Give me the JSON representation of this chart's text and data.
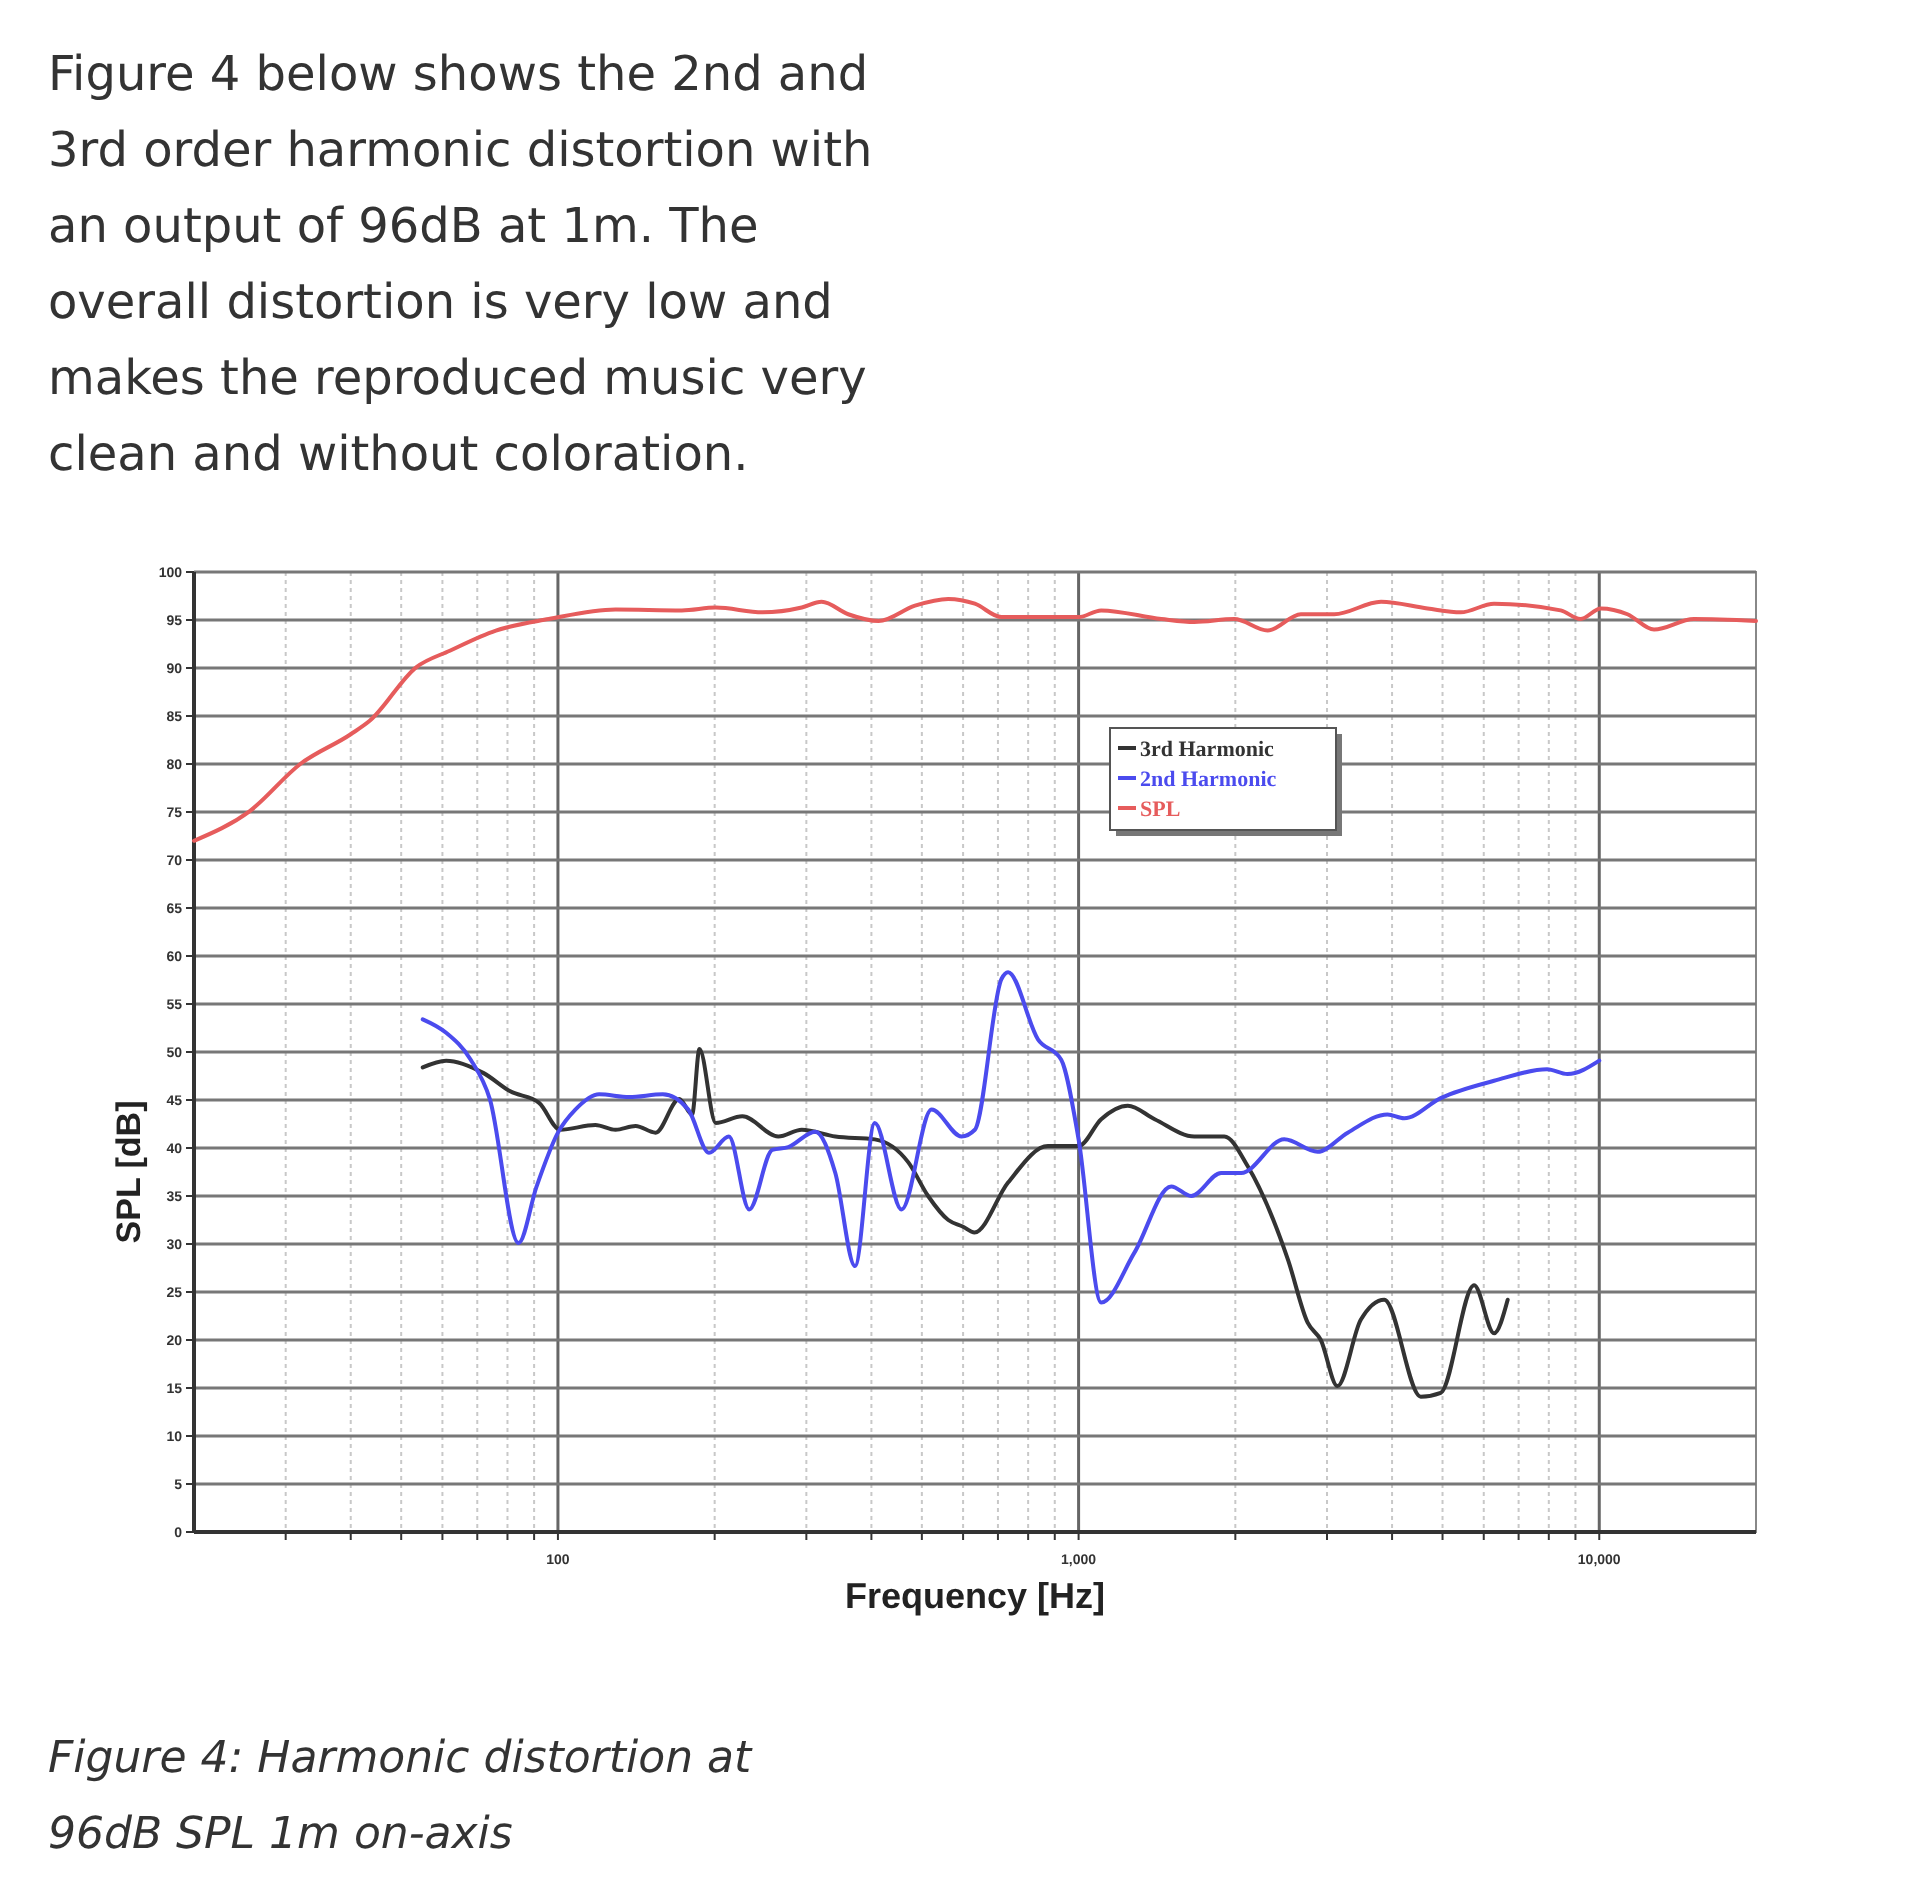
{
  "chart_data": {
    "type": "line",
    "xlabel": "Frequency [Hz]",
    "ylabel": "SPL [dB]",
    "log": "x",
    "grid": true,
    "legend": "top",
    "line_style": "solid",
    "marker": "none",
    "xlim": [
      20,
      20000
    ],
    "xticks": [
      {
        "value": 30,
        "label": null
      },
      {
        "value": 40,
        "label": null
      },
      {
        "value": 50,
        "label": null
      },
      {
        "value": 60,
        "label": null
      },
      {
        "value": 70,
        "label": null
      },
      {
        "value": 80,
        "label": null
      },
      {
        "value": 90,
        "label": null
      },
      100,
      {
        "value": 200,
        "label": null
      },
      {
        "value": 300,
        "label": null
      },
      {
        "value": 400,
        "label": null
      },
      {
        "value": 500,
        "label": null
      },
      {
        "value": 600,
        "label": null
      },
      {
        "value": 700,
        "label": null
      },
      {
        "value": 800,
        "label": null
      },
      {
        "value": 900,
        "label": null
      },
      {
        "value": 1000,
        "label": "1,000"
      },
      {
        "value": 2000,
        "label": null
      },
      {
        "value": 3000,
        "label": null
      },
      {
        "value": 4000,
        "label": null
      },
      {
        "value": 5000,
        "label": null
      },
      {
        "value": 6000,
        "label": null
      },
      {
        "value": 7000,
        "label": null
      },
      {
        "value": 8000,
        "label": null
      },
      {
        "value": 9000,
        "label": null
      },
      {
        "value": 10000,
        "label": "10,000"
      }
    ],
    "ylim": [
      0,
      100
    ],
    "yticks": [
      0,
      5,
      10,
      15,
      20,
      25,
      30,
      35,
      40,
      45,
      50,
      55,
      60,
      65,
      70,
      75,
      80,
      85,
      90,
      95,
      100
    ],
    "series": [
      {
        "name": "3rd Harmonic",
        "color": "#333333",
        "x": [
          55,
          61,
          72,
          81,
          92,
          101,
          118,
          129,
          141,
          154,
          171,
          181,
          187,
          201,
          226,
          265,
          294,
          341,
          406,
          471,
          514,
          562,
          600,
          631,
          732,
          873,
          1000,
          1105,
          1243,
          1400,
          1668,
          1905,
          2113,
          2523,
          2754,
          2919,
          3141,
          3483,
          3864,
          4541,
          4960,
          5750,
          6280,
          6670
        ],
        "values": [
          48.4,
          49.1,
          47.8,
          45.9,
          44.7,
          41.9,
          42.4,
          41.9,
          42.3,
          41.6,
          45.1,
          43.5,
          50.3,
          42.6,
          43.3,
          41.2,
          41.9,
          41.2,
          40.9,
          38.5,
          35,
          32.5,
          31.8,
          31.2,
          36.4,
          40.2,
          40.2,
          43,
          44.4,
          43,
          41.2,
          41.2,
          38.1,
          28.4,
          21.8,
          20,
          15.2,
          22.1,
          24.2,
          14.1,
          14.5,
          25.7,
          20.7,
          24.2
        ]
      },
      {
        "name": "2nd Harmonic",
        "color": "#4b4bee",
        "x": [
          55,
          61,
          68,
          74,
          84,
          91,
          100,
          108,
          120,
          137,
          159,
          178,
          195,
          213,
          233,
          258,
          277,
          312,
          341,
          372,
          406,
          457,
          522,
          596,
          632,
          711,
          732,
          836,
          926,
          1000,
          1105,
          1280,
          1506,
          1645,
          1878,
          2052,
          2483,
          2877,
          3288,
          3920,
          4220,
          4960,
          6280,
          7940,
          8690,
          10000
        ],
        "values": [
          53.4,
          52,
          49.2,
          45.1,
          30.1,
          36,
          41.6,
          44,
          45.6,
          45.3,
          45.6,
          44,
          39.5,
          41.2,
          33.6,
          39.8,
          40.1,
          41.7,
          37.4,
          27.7,
          42.6,
          33.6,
          44,
          41.2,
          41.9,
          57.6,
          58.3,
          51.3,
          49.2,
          40.9,
          23.9,
          29.1,
          36,
          35,
          37.4,
          37.4,
          40.9,
          39.6,
          41.6,
          43.5,
          43.1,
          45.2,
          47,
          48.2,
          47.7,
          49.1
        ]
      },
      {
        "name": "SPL",
        "color": "#e65c5c",
        "x": [
          20,
          25.6,
          32,
          40,
          43.5,
          53.5,
          62,
          76,
          96,
          129,
          173,
          201,
          247,
          294,
          321,
          361,
          413,
          485,
          562,
          632,
          711,
          1000,
          1105,
          1442,
          1668,
          1990,
          2307,
          2673,
          3097,
          3810,
          4680,
          5420,
          6280,
          8430,
          9200,
          10070,
          11330,
          12740,
          15200,
          20000
        ],
        "values": [
          72,
          75.1,
          80,
          83.1,
          84.5,
          90.1,
          91.8,
          93.9,
          95.1,
          96.1,
          96,
          96.3,
          95.8,
          96.3,
          96.9,
          95.6,
          94.9,
          96.5,
          97.2,
          96.7,
          95.3,
          95.3,
          96,
          95.1,
          94.8,
          95.1,
          93.9,
          95.6,
          95.6,
          96.9,
          96.2,
          95.8,
          96.7,
          96,
          95.1,
          96.2,
          95.6,
          94,
          95.1,
          94.9
        ]
      }
    ],
    "annotations": [
      "Figure 4 below shows the 2nd and 3rd order harmonic distortion with an output of 96dB at 1m. The overall distortion is very low and makes the reproduced music very clean and without coloration.",
      "Figure 4: Harmonic distortion at 96dB SPL 1m on-axis"
    ]
  }
}
